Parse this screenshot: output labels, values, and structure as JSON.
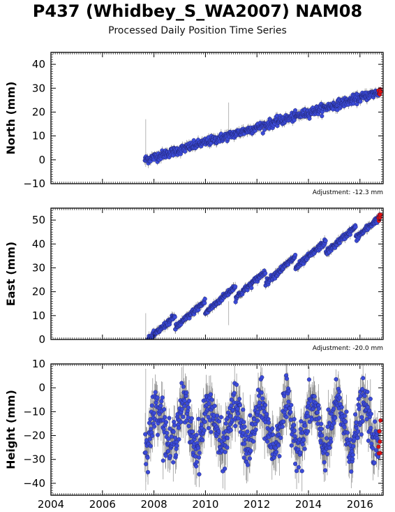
{
  "title": "P437 (Whidbey_S_WA2007) NAM08",
  "subtitle": "Processed Daily Position Time Series",
  "colors": {
    "points": "#3b4bd8",
    "recent_points": "#dd1111",
    "error_bars": "#8a8a8a"
  },
  "chart_data": [
    {
      "type": "scatter",
      "ylabel": "North (mm)",
      "adjustment": "Adjustment: -12.3 mm",
      "xlim": [
        2004,
        2016.9
      ],
      "ylim": [
        -10,
        45
      ],
      "yticks": [
        -10,
        0,
        10,
        20,
        30,
        40
      ],
      "xticks": [
        2004,
        2006,
        2008,
        2010,
        2012,
        2014,
        2016
      ],
      "series_start": 2007.65,
      "series_end": 2016.8,
      "trend_start": 0.0,
      "trend_end": 28.5,
      "recent_value": 29.7,
      "recent_start": 2016.72
    },
    {
      "type": "scatter",
      "ylabel": "East (mm)",
      "adjustment": "Adjustment: -20.0 mm",
      "xlim": [
        2004,
        2016.9
      ],
      "ylim": [
        0,
        55
      ],
      "yticks": [
        0,
        10,
        20,
        30,
        40,
        50
      ],
      "xticks": [
        2004,
        2006,
        2008,
        2010,
        2012,
        2014,
        2016
      ],
      "series_start": 2007.65,
      "series_end": 2016.8,
      "trend_start": 1.0,
      "trend_end": 50.0,
      "recent_value": 49.5,
      "recent_start": 2016.72
    },
    {
      "type": "scatter",
      "ylabel": "Height (mm)",
      "xlim": [
        2004,
        2016.9
      ],
      "ylim": [
        -45,
        10
      ],
      "yticks": [
        -40,
        -30,
        -20,
        -10,
        0,
        10
      ],
      "xticks": [
        2004,
        2006,
        2008,
        2010,
        2012,
        2014,
        2016
      ],
      "xticklabels": [
        "2004",
        "2006",
        "2008",
        "2010",
        "2012",
        "2014",
        "2016"
      ],
      "series_start": 2007.65,
      "series_end": 2016.8,
      "mean": -16,
      "annual_amplitude": 9,
      "recent_value": -16,
      "recent_start": 2016.72
    }
  ]
}
